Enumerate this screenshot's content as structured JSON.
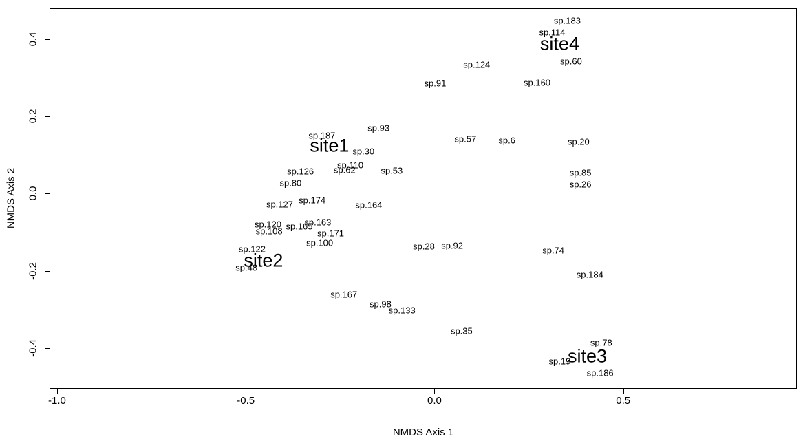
{
  "colors": {
    "background": "#ffffff",
    "text": "#000000",
    "axis": "#000000"
  },
  "chart_data": {
    "type": "scatter",
    "title": "",
    "xlabel": "NMDS Axis 1",
    "ylabel": "NMDS Axis 2",
    "xlim": [
      -1.02,
      0.96
    ],
    "ylim": [
      -0.505,
      0.48
    ],
    "grid": false,
    "legend": "none",
    "xticks": [
      {
        "value": -1.0,
        "label": "-1.0"
      },
      {
        "value": -0.5,
        "label": "-0.5"
      },
      {
        "value": 0.0,
        "label": "0.0"
      },
      {
        "value": 0.5,
        "label": "0.5"
      }
    ],
    "yticks": [
      {
        "value": -0.4,
        "label": "-0.4"
      },
      {
        "value": -0.2,
        "label": "-0.2"
      },
      {
        "value": 0.0,
        "label": "0.0"
      },
      {
        "value": 0.2,
        "label": "0.2"
      },
      {
        "value": 0.4,
        "label": "0.4"
      }
    ],
    "points": [
      {
        "label": "sp.183",
        "x": 0.35,
        "y": 0.45,
        "kind": "species"
      },
      {
        "label": "sp.114",
        "x": 0.31,
        "y": 0.42,
        "kind": "species"
      },
      {
        "label": "sp.60",
        "x": 0.36,
        "y": 0.345,
        "kind": "species"
      },
      {
        "label": "sp.124",
        "x": 0.11,
        "y": 0.335,
        "kind": "species"
      },
      {
        "label": "sp.160",
        "x": 0.27,
        "y": 0.29,
        "kind": "species"
      },
      {
        "label": "sp.91",
        "x": 0.0,
        "y": 0.287,
        "kind": "species"
      },
      {
        "label": "sp.93",
        "x": -0.15,
        "y": 0.172,
        "kind": "species"
      },
      {
        "label": "sp.187",
        "x": -0.3,
        "y": 0.152,
        "kind": "species"
      },
      {
        "label": "sp.57",
        "x": 0.08,
        "y": 0.143,
        "kind": "species"
      },
      {
        "label": "sp.6",
        "x": 0.19,
        "y": 0.14,
        "kind": "species"
      },
      {
        "label": "sp.20",
        "x": 0.38,
        "y": 0.136,
        "kind": "species"
      },
      {
        "label": "sp.30",
        "x": -0.19,
        "y": 0.111,
        "kind": "species"
      },
      {
        "label": "sp.110",
        "x": -0.225,
        "y": 0.075,
        "kind": "species"
      },
      {
        "label": "sp.62",
        "x": -0.24,
        "y": 0.063,
        "kind": "species"
      },
      {
        "label": "sp.126",
        "x": -0.357,
        "y": 0.059,
        "kind": "species"
      },
      {
        "label": "sp.53",
        "x": -0.115,
        "y": 0.061,
        "kind": "species"
      },
      {
        "label": "sp.85",
        "x": 0.385,
        "y": 0.056,
        "kind": "species"
      },
      {
        "label": "sp.80",
        "x": -0.383,
        "y": 0.029,
        "kind": "species"
      },
      {
        "label": "sp.26",
        "x": 0.385,
        "y": 0.025,
        "kind": "species"
      },
      {
        "label": "sp.174",
        "x": -0.326,
        "y": -0.016,
        "kind": "species"
      },
      {
        "label": "sp.127",
        "x": -0.412,
        "y": -0.025,
        "kind": "species"
      },
      {
        "label": "sp.164",
        "x": -0.176,
        "y": -0.028,
        "kind": "species"
      },
      {
        "label": "sp.163",
        "x": -0.311,
        "y": -0.073,
        "kind": "species"
      },
      {
        "label": "sp.120",
        "x": -0.443,
        "y": -0.078,
        "kind": "species"
      },
      {
        "label": "sp.165",
        "x": -0.36,
        "y": -0.082,
        "kind": "species"
      },
      {
        "label": "sp.108",
        "x": -0.44,
        "y": -0.096,
        "kind": "species"
      },
      {
        "label": "sp.171",
        "x": -0.277,
        "y": -0.1,
        "kind": "species"
      },
      {
        "label": "sp.100",
        "x": -0.306,
        "y": -0.126,
        "kind": "species"
      },
      {
        "label": "sp.28",
        "x": -0.03,
        "y": -0.135,
        "kind": "species"
      },
      {
        "label": "sp.92",
        "x": 0.045,
        "y": -0.132,
        "kind": "species"
      },
      {
        "label": "sp.74",
        "x": 0.313,
        "y": -0.145,
        "kind": "species"
      },
      {
        "label": "sp.122",
        "x": -0.485,
        "y": -0.142,
        "kind": "species"
      },
      {
        "label": "sp.48",
        "x": -0.5,
        "y": -0.19,
        "kind": "species"
      },
      {
        "label": "sp.184",
        "x": 0.41,
        "y": -0.207,
        "kind": "species"
      },
      {
        "label": "sp.167",
        "x": -0.242,
        "y": -0.259,
        "kind": "species"
      },
      {
        "label": "sp.98",
        "x": -0.145,
        "y": -0.285,
        "kind": "species"
      },
      {
        "label": "sp.133",
        "x": -0.088,
        "y": -0.301,
        "kind": "species"
      },
      {
        "label": "sp.35",
        "x": 0.07,
        "y": -0.353,
        "kind": "species"
      },
      {
        "label": "sp.78",
        "x": 0.44,
        "y": -0.383,
        "kind": "species"
      },
      {
        "label": "sp.19",
        "x": 0.33,
        "y": -0.432,
        "kind": "species"
      },
      {
        "label": "sp.186",
        "x": 0.437,
        "y": -0.462,
        "kind": "species"
      },
      {
        "label": "site1",
        "x": -0.28,
        "y": 0.125,
        "kind": "site"
      },
      {
        "label": "site2",
        "x": -0.455,
        "y": -0.172,
        "kind": "site"
      },
      {
        "label": "site3",
        "x": 0.403,
        "y": -0.419,
        "kind": "site"
      },
      {
        "label": "site4",
        "x": 0.33,
        "y": 0.39,
        "kind": "site"
      }
    ]
  }
}
